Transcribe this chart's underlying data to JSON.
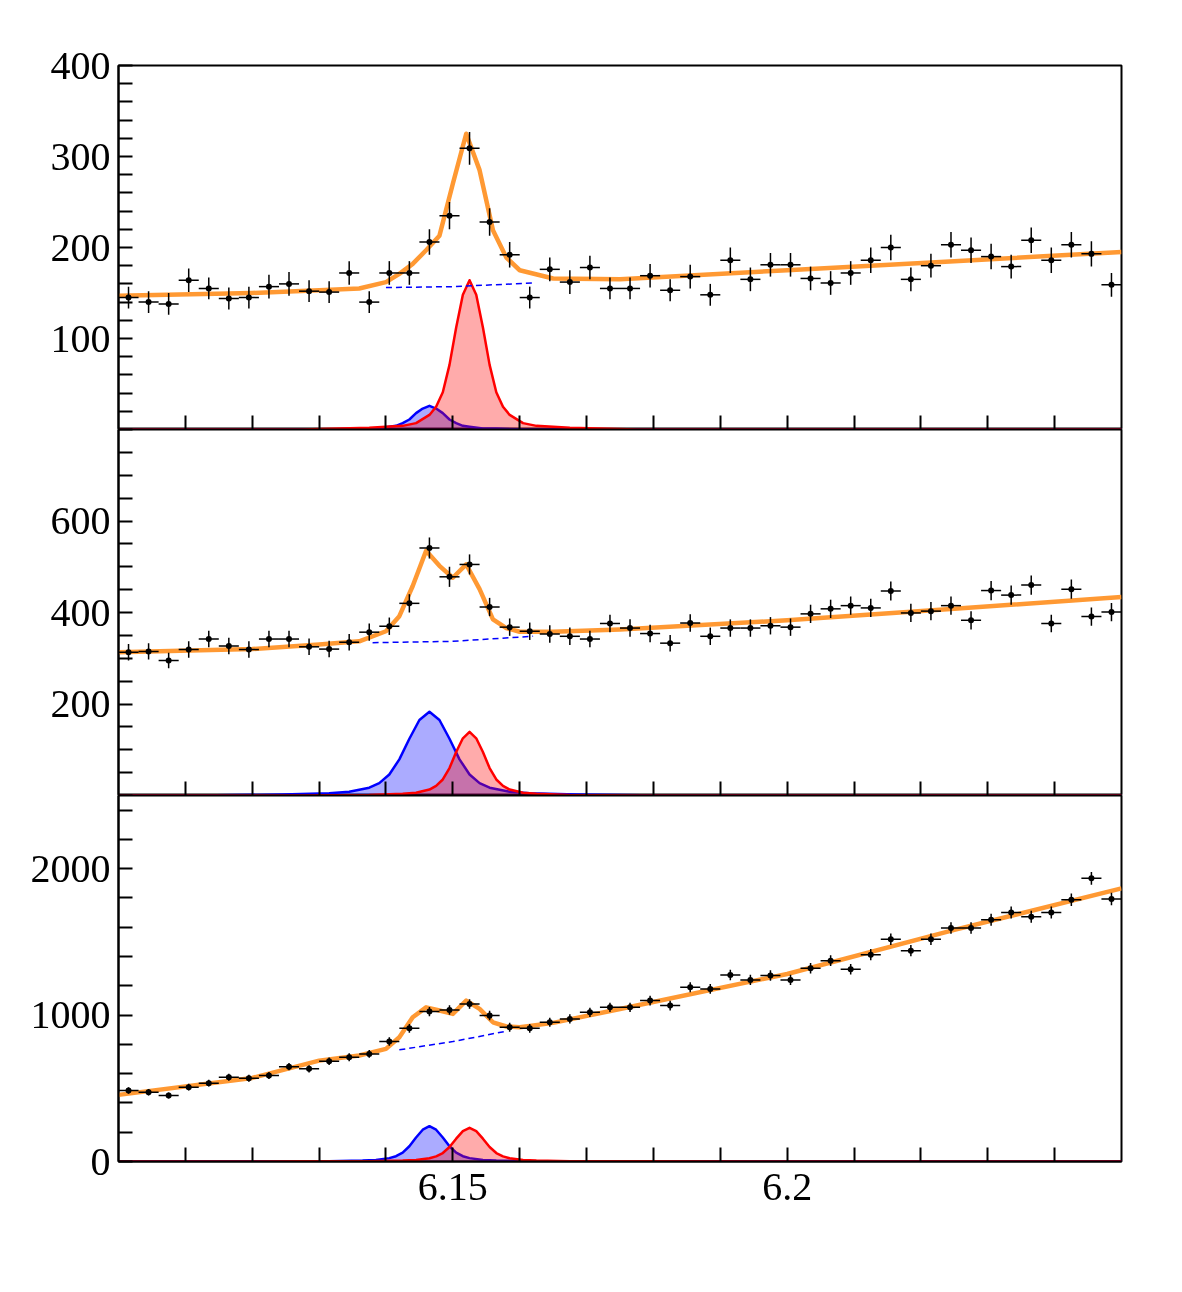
{
  "chart_data": [
    {
      "type": "scatter",
      "xlim": [
        6.1,
        6.25
      ],
      "ylim": [
        0,
        400
      ],
      "tick_labels": "y",
      "xticks": [
        {
          "value": 6.11,
          "label": null
        },
        {
          "value": 6.12,
          "label": null
        },
        {
          "value": 6.13,
          "label": null
        },
        {
          "value": 6.14,
          "label": null
        },
        {
          "value": 6.15,
          "label": null
        },
        {
          "value": 6.16,
          "label": null
        },
        {
          "value": 6.17,
          "label": null
        },
        {
          "value": 6.18,
          "label": null
        },
        {
          "value": 6.19,
          "label": null
        },
        {
          "value": 6.2,
          "label": null
        },
        {
          "value": 6.21,
          "label": null
        },
        {
          "value": 6.22,
          "label": null
        },
        {
          "value": 6.23,
          "label": null
        },
        {
          "value": 6.24,
          "label": null
        }
      ],
      "yticks": [
        {
          "value": 0,
          "label": null
        },
        {
          "value": 20,
          "label": null
        },
        {
          "value": 40,
          "label": null
        },
        {
          "value": 60,
          "label": null
        },
        {
          "value": 80,
          "label": null
        },
        100,
        {
          "value": 120,
          "label": null
        },
        {
          "value": 140,
          "label": null
        },
        {
          "value": 160,
          "label": null
        },
        {
          "value": 180,
          "label": null
        },
        200,
        {
          "value": 220,
          "label": null
        },
        {
          "value": 240,
          "label": null
        },
        {
          "value": 260,
          "label": null
        },
        {
          "value": 280,
          "label": null
        },
        300,
        {
          "value": 320,
          "label": null
        },
        {
          "value": 340,
          "label": null
        },
        {
          "value": 360,
          "label": null
        },
        {
          "value": 380,
          "label": null
        },
        400
      ],
      "series": [
        {
          "type": "area",
          "color": "#0000ff",
          "x": [
            6.1,
            6.1215,
            6.1315,
            6.1365,
            6.1385,
            6.1405,
            6.1415,
            6.1425,
            6.1435,
            6.1445,
            6.1455,
            6.1465,
            6.1475,
            6.1485,
            6.1495,
            6.1505,
            6.1515,
            6.1525,
            6.1545,
            6.1565,
            6.1615,
            6.1715,
            6.25
          ],
          "values": [
            0,
            0,
            0,
            1,
            1,
            3,
            4,
            7,
            11,
            18,
            23,
            26,
            23,
            18,
            11,
            7,
            4,
            3,
            1,
            1,
            0,
            0,
            0
          ]
        },
        {
          "type": "area",
          "color": "#ff0000",
          "x": [
            6.1,
            6.1275,
            6.1375,
            6.1425,
            6.1445,
            6.1465,
            6.1475,
            6.1485,
            6.1495,
            6.1505,
            6.1515,
            6.1525,
            6.1535,
            6.1545,
            6.1555,
            6.1565,
            6.1575,
            6.1585,
            6.1605,
            6.1625,
            6.1675,
            6.1775,
            6.25
          ],
          "values": [
            0,
            0,
            2,
            4,
            7,
            16,
            25,
            41,
            71,
            112,
            148,
            164,
            148,
            112,
            71,
            41,
            25,
            16,
            7,
            4,
            2,
            0,
            0
          ]
        },
        {
          "type": "line",
          "line_style": "dashed",
          "color": "#0000ff",
          "x": [
            6.14,
            6.15,
            6.162
          ],
          "values": [
            156,
            157,
            161
          ]
        },
        {
          "type": "line",
          "line_style": "solid",
          "color": "#ff9933",
          "x": [
            6.1,
            6.12,
            6.13,
            6.136,
            6.14,
            6.142,
            6.144,
            6.146,
            6.148,
            6.15,
            6.152,
            6.154,
            6.156,
            6.158,
            6.16,
            6.165,
            6.175,
            6.2,
            6.225,
            6.25
          ],
          "values": [
            147,
            150,
            153,
            155,
            162,
            171,
            182,
            197,
            213,
            270,
            325,
            285,
            219,
            189,
            175,
            166,
            165,
            175,
            185,
            195
          ]
        },
        {
          "marker": "circle",
          "color": "#000000",
          "x": [
            6.1015,
            6.1045,
            6.1075,
            6.1105,
            6.1135,
            6.1165,
            6.1195,
            6.1225,
            6.1255,
            6.1285,
            6.1315,
            6.1345,
            6.1375,
            6.1405,
            6.1435,
            6.1465,
            6.1495,
            6.1525,
            6.1555,
            6.1585,
            6.1615,
            6.1645,
            6.1675,
            6.1705,
            6.1735,
            6.1765,
            6.1795,
            6.1825,
            6.1855,
            6.1885,
            6.1915,
            6.1945,
            6.1975,
            6.2005,
            6.2035,
            6.2065,
            6.2095,
            6.2125,
            6.2155,
            6.2185,
            6.2215,
            6.2245,
            6.2275,
            6.2305,
            6.2335,
            6.2365,
            6.2395,
            6.2425,
            6.2455,
            6.2485
          ],
          "values": [
            145,
            140,
            138,
            164,
            155,
            144,
            145,
            157,
            160,
            152,
            151,
            172,
            140,
            172,
            172,
            206,
            235,
            309,
            228,
            192,
            145,
            176,
            162,
            178,
            155,
            155,
            169,
            153,
            168,
            148,
            186,
            165,
            181,
            181,
            166,
            161,
            172,
            186,
            200,
            165,
            180,
            203,
            197,
            190,
            179,
            208,
            186,
            203,
            193,
            159
          ],
          "errors": [
            12,
            12,
            12,
            13,
            12,
            12,
            12,
            13,
            13,
            12,
            12,
            13,
            12,
            13,
            13,
            14,
            15,
            18,
            15,
            14,
            12,
            13,
            13,
            13,
            12,
            12,
            13,
            12,
            13,
            12,
            14,
            13,
            13,
            13,
            13,
            13,
            13,
            14,
            14,
            13,
            13,
            14,
            14,
            14,
            13,
            14,
            14,
            14,
            14,
            13
          ],
          "xerrors": [
            0.0015,
            0.0015,
            0.0015,
            0.0015,
            0.0015,
            0.0015,
            0.0015,
            0.0015,
            0.0015,
            0.0015,
            0.0015,
            0.0015,
            0.0015,
            0.0015,
            0.0015,
            0.0015,
            0.0015,
            0.0015,
            0.0015,
            0.0015,
            0.0015,
            0.0015,
            0.0015,
            0.0015,
            0.0015,
            0.0015,
            0.0015,
            0.0015,
            0.0015,
            0.0015,
            0.0015,
            0.0015,
            0.0015,
            0.0015,
            0.0015,
            0.0015,
            0.0015,
            0.0015,
            0.0015,
            0.0015,
            0.0015,
            0.0015,
            0.0015,
            0.0015,
            0.0015,
            0.0015,
            0.0015,
            0.0015,
            0.0015,
            0.0015
          ]
        }
      ]
    },
    {
      "type": "scatter",
      "xlim": [
        6.1,
        6.25
      ],
      "ylim": [
        0,
        800
      ],
      "tick_labels": "y",
      "xticks": [
        {
          "value": 6.11,
          "label": null
        },
        {
          "value": 6.12,
          "label": null
        },
        {
          "value": 6.13,
          "label": null
        },
        {
          "value": 6.14,
          "label": null
        },
        {
          "value": 6.15,
          "label": null
        },
        {
          "value": 6.16,
          "label": null
        },
        {
          "value": 6.17,
          "label": null
        },
        {
          "value": 6.18,
          "label": null
        },
        {
          "value": 6.19,
          "label": null
        },
        {
          "value": 6.2,
          "label": null
        },
        {
          "value": 6.21,
          "label": null
        },
        {
          "value": 6.22,
          "label": null
        },
        {
          "value": 6.23,
          "label": null
        },
        {
          "value": 6.24,
          "label": null
        }
      ],
      "yticks": [
        {
          "value": 0,
          "label": null
        },
        {
          "value": 50,
          "label": null
        },
        {
          "value": 100,
          "label": null
        },
        {
          "value": 150,
          "label": null
        },
        200,
        {
          "value": 250,
          "label": null
        },
        {
          "value": 300,
          "label": null
        },
        {
          "value": 350,
          "label": null
        },
        400,
        {
          "value": 450,
          "label": null
        },
        {
          "value": 500,
          "label": null
        },
        {
          "value": 550,
          "label": null
        },
        600,
        {
          "value": 650,
          "label": null
        },
        {
          "value": 700,
          "label": null
        },
        {
          "value": 750,
          "label": null
        },
        {
          "value": 800,
          "label": null
        }
      ],
      "series": [
        {
          "type": "area",
          "color": "#0000ff",
          "x": [
            6.1,
            6.1115,
            6.1245,
            6.1315,
            6.1345,
            6.1375,
            6.139,
            6.1405,
            6.142,
            6.1435,
            6.145,
            6.1465,
            6.148,
            6.1495,
            6.151,
            6.1525,
            6.154,
            6.1555,
            6.1585,
            6.1615,
            6.1685,
            6.1815,
            6.25
          ],
          "values": [
            0,
            0,
            2,
            5,
            8,
            17,
            27,
            46,
            79,
            124,
            165,
            183,
            165,
            124,
            79,
            46,
            27,
            17,
            8,
            5,
            2,
            0,
            0
          ]
        },
        {
          "type": "area",
          "color": "#ff0000",
          "x": [
            6.1,
            6.1275,
            6.1375,
            6.1425,
            6.1445,
            6.1465,
            6.1475,
            6.1485,
            6.1495,
            6.1505,
            6.1515,
            6.1525,
            6.1535,
            6.1545,
            6.1555,
            6.1565,
            6.1575,
            6.1585,
            6.1605,
            6.1625,
            6.1675,
            6.1775,
            6.25
          ],
          "values": [
            0,
            0,
            1,
            4,
            6,
            13,
            21,
            35,
            60,
            95,
            125,
            139,
            125,
            95,
            60,
            35,
            21,
            13,
            6,
            4,
            1,
            0,
            0
          ]
        },
        {
          "type": "line",
          "line_style": "dashed",
          "color": "#0000ff",
          "x": [
            6.138,
            6.15,
            6.162
          ],
          "values": [
            334,
            337,
            348
          ]
        },
        {
          "type": "line",
          "line_style": "solid",
          "color": "#ff9933",
          "x": [
            6.1,
            6.12,
            6.13,
            6.136,
            6.14,
            6.142,
            6.144,
            6.146,
            6.148,
            6.15,
            6.152,
            6.154,
            6.156,
            6.158,
            6.16,
            6.165,
            6.175,
            6.2,
            6.225,
            6.25
          ],
          "values": [
            313,
            320,
            330,
            337,
            359,
            392,
            458,
            535,
            502,
            476,
            505,
            451,
            385,
            366,
            358,
            358,
            363,
            383,
            408,
            434
          ]
        },
        {
          "marker": "circle",
          "color": "#000000",
          "x": [
            6.1015,
            6.1045,
            6.1075,
            6.1105,
            6.1135,
            6.1165,
            6.1195,
            6.1225,
            6.1255,
            6.1285,
            6.1315,
            6.1345,
            6.1375,
            6.1405,
            6.1435,
            6.1465,
            6.1495,
            6.1525,
            6.1555,
            6.1585,
            6.1615,
            6.1645,
            6.1675,
            6.1705,
            6.1735,
            6.1765,
            6.1795,
            6.1825,
            6.1855,
            6.1885,
            6.1915,
            6.1945,
            6.1975,
            6.2005,
            6.2035,
            6.2065,
            6.2095,
            6.2125,
            6.2155,
            6.2185,
            6.2215,
            6.2245,
            6.2275,
            6.2305,
            6.2335,
            6.2365,
            6.2395,
            6.2425,
            6.2455,
            6.2485
          ],
          "values": [
            313,
            315,
            295,
            319,
            342,
            327,
            319,
            342,
            342,
            325,
            320,
            335,
            357,
            370,
            420,
            541,
            478,
            505,
            412,
            368,
            359,
            353,
            348,
            342,
            376,
            366,
            354,
            333,
            377,
            348,
            366,
            366,
            371,
            368,
            397,
            408,
            415,
            410,
            447,
            399,
            403,
            415,
            383,
            448,
            438,
            460,
            376,
            451,
            391,
            401
          ],
          "errors": [
            18,
            18,
            17,
            18,
            18,
            18,
            18,
            18,
            18,
            18,
            18,
            18,
            19,
            19,
            20,
            23,
            22,
            22,
            20,
            19,
            19,
            19,
            19,
            18,
            19,
            19,
            19,
            18,
            19,
            19,
            19,
            19,
            19,
            19,
            20,
            20,
            20,
            20,
            21,
            20,
            20,
            20,
            20,
            21,
            21,
            21,
            19,
            21,
            20,
            20
          ],
          "xerrors": [
            0.0015,
            0.0015,
            0.0015,
            0.0015,
            0.0015,
            0.0015,
            0.0015,
            0.0015,
            0.0015,
            0.0015,
            0.0015,
            0.0015,
            0.0015,
            0.0015,
            0.0015,
            0.0015,
            0.0015,
            0.0015,
            0.0015,
            0.0015,
            0.0015,
            0.0015,
            0.0015,
            0.0015,
            0.0015,
            0.0015,
            0.0015,
            0.0015,
            0.0015,
            0.0015,
            0.0015,
            0.0015,
            0.0015,
            0.0015,
            0.0015,
            0.0015,
            0.0015,
            0.0015,
            0.0015,
            0.0015,
            0.0015,
            0.0015,
            0.0015,
            0.0015,
            0.0015,
            0.0015,
            0.0015,
            0.0015,
            0.0015,
            0.0015
          ]
        }
      ]
    },
    {
      "type": "scatter",
      "xlim": [
        6.1,
        6.25
      ],
      "ylim": [
        0,
        2500
      ],
      "xticks": [
        {
          "value": 6.11,
          "label": null
        },
        {
          "value": 6.12,
          "label": null
        },
        {
          "value": 6.13,
          "label": null
        },
        {
          "value": 6.14,
          "label": null
        },
        6.15,
        {
          "value": 6.16,
          "label": null
        },
        {
          "value": 6.17,
          "label": null
        },
        {
          "value": 6.18,
          "label": null
        },
        {
          "value": 6.19,
          "label": null
        },
        6.2,
        {
          "value": 6.21,
          "label": null
        },
        {
          "value": 6.22,
          "label": null
        },
        {
          "value": 6.23,
          "label": null
        },
        {
          "value": 6.24,
          "label": null
        }
      ],
      "yticks": [
        0,
        {
          "value": 200,
          "label": null
        },
        {
          "value": 400,
          "label": null
        },
        {
          "value": 600,
          "label": null
        },
        {
          "value": 800,
          "label": null
        },
        1000,
        {
          "value": 1200,
          "label": null
        },
        {
          "value": 1400,
          "label": null
        },
        {
          "value": 1600,
          "label": null
        },
        {
          "value": 1800,
          "label": null
        },
        2000,
        {
          "value": 2200,
          "label": null
        },
        {
          "value": 2400,
          "label": null
        }
      ],
      "series": [
        {
          "type": "area",
          "color": "#0000ff",
          "x": [
            6.1,
            6.1215,
            6.1315,
            6.1365,
            6.1385,
            6.1405,
            6.1415,
            6.1425,
            6.1435,
            6.1445,
            6.1455,
            6.1465,
            6.1475,
            6.1485,
            6.1495,
            6.1505,
            6.1515,
            6.1525,
            6.1545,
            6.1565,
            6.1615,
            6.1715,
            6.25
          ],
          "values": [
            0,
            1,
            2,
            6,
            11,
            23,
            36,
            60,
            104,
            164,
            217,
            241,
            217,
            164,
            104,
            60,
            36,
            23,
            11,
            6,
            2,
            1,
            0
          ]
        },
        {
          "type": "area",
          "color": "#ff0000",
          "x": [
            6.1,
            6.1275,
            6.1375,
            6.1425,
            6.1445,
            6.1465,
            6.1475,
            6.1485,
            6.1495,
            6.1505,
            6.1515,
            6.1525,
            6.1535,
            6.1545,
            6.1555,
            6.1565,
            6.1575,
            6.1585,
            6.1605,
            6.1625,
            6.1675,
            6.1775,
            6.25
          ],
          "values": [
            0,
            1,
            2,
            6,
            10,
            22,
            35,
            58,
            99,
            156,
            207,
            230,
            207,
            156,
            99,
            58,
            35,
            22,
            10,
            6,
            2,
            1,
            0
          ]
        },
        {
          "type": "line",
          "line_style": "dashed",
          "color": "#0000ff",
          "x": [
            6.142,
            6.15,
            6.158
          ],
          "values": [
            763,
            819,
            890
          ]
        },
        {
          "type": "line",
          "line_style": "solid",
          "color": "#ff9933",
          "x": [
            6.1,
            6.12,
            6.13,
            6.136,
            6.14,
            6.142,
            6.144,
            6.146,
            6.148,
            6.15,
            6.152,
            6.154,
            6.156,
            6.158,
            6.16,
            6.165,
            6.175,
            6.2,
            6.225,
            6.25
          ],
          "values": [
            455,
            571,
            689,
            724,
            769,
            849,
            985,
            1053,
            1031,
            1008,
            1099,
            1042,
            951,
            922,
            917,
            947,
            1042,
            1281,
            1582,
            1866
          ]
        },
        {
          "marker": "circle",
          "color": "#000000",
          "x": [
            6.1015,
            6.1045,
            6.1075,
            6.1105,
            6.1135,
            6.1165,
            6.1195,
            6.1225,
            6.1255,
            6.1285,
            6.1315,
            6.1345,
            6.1375,
            6.1405,
            6.1435,
            6.1465,
            6.1495,
            6.1525,
            6.1555,
            6.1585,
            6.1615,
            6.1645,
            6.1675,
            6.1705,
            6.1735,
            6.1765,
            6.1795,
            6.1825,
            6.1855,
            6.1885,
            6.1915,
            6.1945,
            6.1975,
            6.2005,
            6.2035,
            6.2065,
            6.2095,
            6.2125,
            6.2155,
            6.2185,
            6.2215,
            6.2245,
            6.2275,
            6.2305,
            6.2335,
            6.2365,
            6.2395,
            6.2425,
            6.2455,
            6.2485
          ],
          "values": [
            485,
            473,
            451,
            508,
            535,
            576,
            569,
            587,
            648,
            633,
            685,
            712,
            735,
            819,
            910,
            1024,
            1035,
            1076,
            997,
            917,
            910,
            951,
            974,
            1019,
            1053,
            1053,
            1099,
            1065,
            1190,
            1179,
            1274,
            1240,
            1270,
            1240,
            1320,
            1372,
            1313,
            1413,
            1518,
            1440,
            1518,
            1595,
            1595,
            1652,
            1700,
            1672,
            1700,
            1788,
            1934,
            1793
          ],
          "errors": [
            22,
            22,
            21,
            23,
            23,
            24,
            24,
            24,
            25,
            25,
            26,
            27,
            27,
            29,
            30,
            32,
            32,
            33,
            32,
            30,
            30,
            31,
            31,
            32,
            32,
            32,
            33,
            33,
            34,
            34,
            36,
            35,
            36,
            35,
            36,
            37,
            36,
            38,
            39,
            38,
            39,
            40,
            40,
            41,
            41,
            41,
            41,
            42,
            44,
            42
          ],
          "xerrors": [
            0.0015,
            0.0015,
            0.0015,
            0.0015,
            0.0015,
            0.0015,
            0.0015,
            0.0015,
            0.0015,
            0.0015,
            0.0015,
            0.0015,
            0.0015,
            0.0015,
            0.0015,
            0.0015,
            0.0015,
            0.0015,
            0.0015,
            0.0015,
            0.0015,
            0.0015,
            0.0015,
            0.0015,
            0.0015,
            0.0015,
            0.0015,
            0.0015,
            0.0015,
            0.0015,
            0.0015,
            0.0015,
            0.0015,
            0.0015,
            0.0015,
            0.0015,
            0.0015,
            0.0015,
            0.0015,
            0.0015,
            0.0015,
            0.0015,
            0.0015,
            0.0015,
            0.0015,
            0.0015,
            0.0015,
            0.0015,
            0.0015,
            0.0015
          ]
        }
      ]
    }
  ]
}
